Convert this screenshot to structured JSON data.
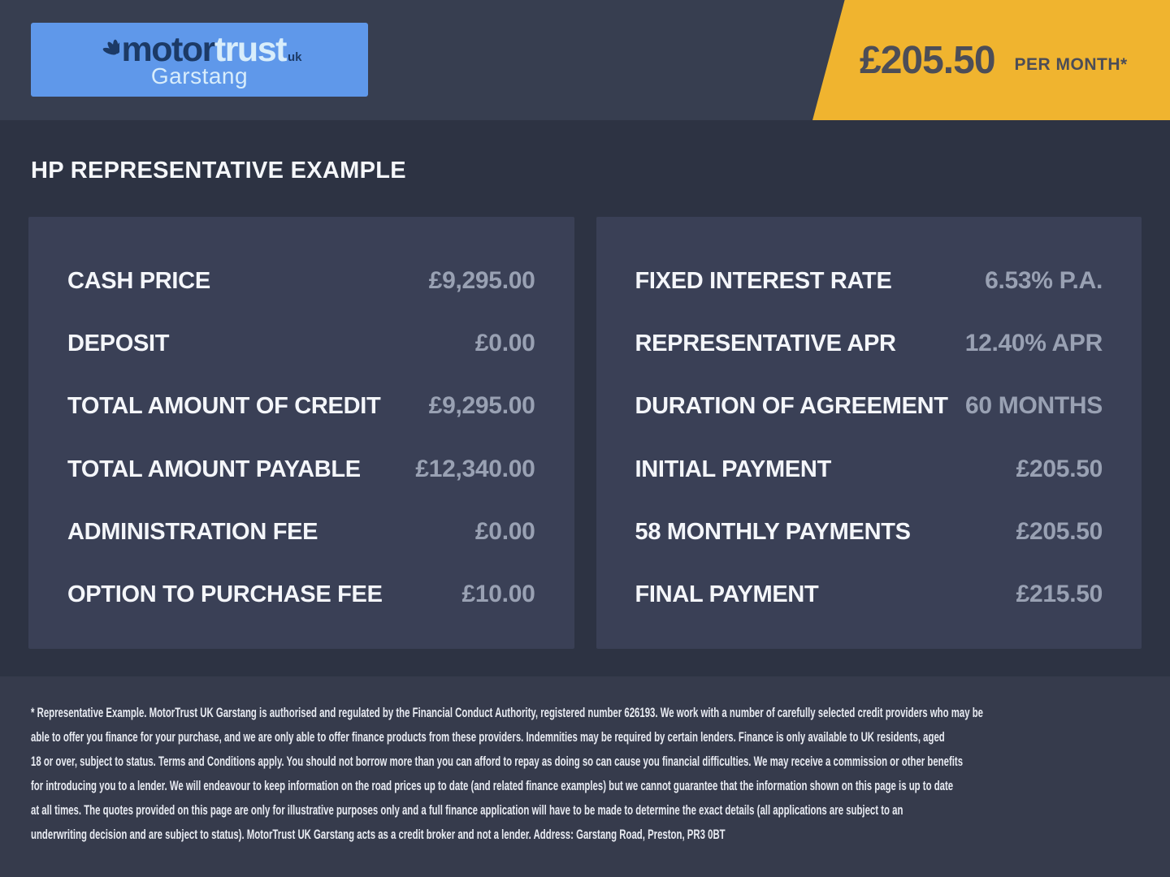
{
  "header": {
    "logo": {
      "brand_part1": "motor",
      "brand_part2": "trust",
      "brand_suffix": "uk",
      "location": "Garstang"
    },
    "badge": {
      "amount": "£205.50",
      "period": "PER MONTH*"
    }
  },
  "title": "HP REPRESENTATIVE EXAMPLE",
  "left_panel": {
    "rows": [
      {
        "label": "CASH PRICE",
        "value": "£9,295.00"
      },
      {
        "label": "DEPOSIT",
        "value": "£0.00"
      },
      {
        "label": "TOTAL AMOUNT OF CREDIT",
        "value": "£9,295.00"
      },
      {
        "label": "TOTAL AMOUNT PAYABLE",
        "value": "£12,340.00"
      },
      {
        "label": "ADMINISTRATION FEE",
        "value": "£0.00"
      },
      {
        "label": "OPTION TO PURCHASE FEE",
        "value": "£10.00"
      }
    ]
  },
  "right_panel": {
    "rows": [
      {
        "label": "FIXED INTEREST RATE",
        "value": "6.53% P.A."
      },
      {
        "label": "REPRESENTATIVE APR",
        "value": "12.40% APR"
      },
      {
        "label": "DURATION OF AGREEMENT",
        "value": "60 MONTHS"
      },
      {
        "label": "INITIAL PAYMENT",
        "value": "£205.50"
      },
      {
        "label": "58 MONTHLY PAYMENTS",
        "value": "£205.50"
      },
      {
        "label": "FINAL PAYMENT",
        "value": "£215.50"
      }
    ]
  },
  "footer": {
    "lines": [
      "* Representative Example. MotorTrust UK Garstang is authorised and regulated by the Financial Conduct Authority, registered number 626193. We work with a number of carefully selected credit providers who may be",
      "able to offer you finance for your purchase, and we are only able to offer finance products from these providers. Indemnities may be required by certain lenders. Finance is only available to UK residents, aged",
      "18 or over, subject to status. Terms and Conditions apply. You should not borrow more than you can afford to repay as doing so can cause you financial difficulties. We may receive a commission or other benefits",
      "for introducing you to a lender. We will endeavour to keep information on the road prices up to date (and related finance examples) but we cannot guarantee that the information shown on this page is up to date",
      "at all times. The quotes provided on this page are only for illustrative purposes only and a full finance application will have to be made to determine the exact details (all applications are subject to an",
      "underwriting decision and are subject to status). MotorTrust UK Garstang acts as a credit broker and not a lender. Address: Garstang Road, Preston, PR3 0BT"
    ]
  },
  "colors": {
    "header_background": "#373e50",
    "body_background": "#2d3343",
    "footer_background": "#363b4c",
    "panel_background": "#3a4056",
    "logo_blue": "#5f98ea",
    "logo_navy_text": "#1c3a66",
    "logo_light_text": "#d8edfb",
    "accent_yellow": "#f0b42f",
    "badge_text": "#4c4d57",
    "label_text": "#f4f6fa",
    "value_text": "#99a1b3",
    "footer_text": "#e8ebf2"
  }
}
